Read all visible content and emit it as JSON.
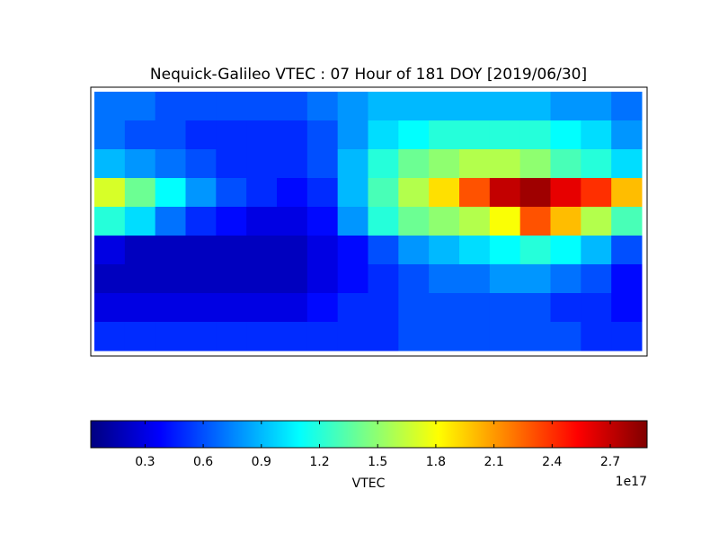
{
  "chart_data": {
    "type": "heatmap",
    "title": "Nequick-Galileo VTEC : 07 Hour of 181 DOY [2019/06/30]",
    "colormap": "jet",
    "xlim": [
      -180,
      180
    ],
    "ylim": [
      -90,
      90
    ],
    "x": [
      -170,
      -150,
      -130,
      -110,
      -90,
      -70,
      -50,
      -30,
      -10,
      10,
      30,
      50,
      70,
      90,
      110,
      130,
      150,
      170
    ],
    "y": [
      80,
      60,
      40,
      20,
      0,
      -20,
      -40,
      -60,
      -80
    ],
    "z": [
      [
        0.7,
        0.7,
        0.6,
        0.6,
        0.6,
        0.6,
        0.6,
        0.7,
        0.8,
        0.9,
        0.9,
        0.9,
        0.9,
        0.9,
        0.9,
        0.8,
        0.8,
        0.7
      ],
      [
        0.7,
        0.6,
        0.6,
        0.5,
        0.5,
        0.5,
        0.5,
        0.6,
        0.8,
        1.0,
        1.1,
        1.2,
        1.2,
        1.2,
        1.2,
        1.1,
        1.0,
        0.8
      ],
      [
        0.9,
        0.8,
        0.7,
        0.6,
        0.5,
        0.5,
        0.5,
        0.6,
        0.9,
        1.2,
        1.4,
        1.5,
        1.6,
        1.6,
        1.5,
        1.3,
        1.2,
        1.0
      ],
      [
        1.7,
        1.4,
        1.1,
        0.8,
        0.6,
        0.5,
        0.4,
        0.5,
        0.9,
        1.3,
        1.6,
        1.9,
        2.3,
        2.7,
        2.8,
        2.6,
        2.4,
        2.0
      ],
      [
        1.2,
        1.0,
        0.7,
        0.5,
        0.4,
        0.3,
        0.3,
        0.4,
        0.8,
        1.2,
        1.4,
        1.5,
        1.6,
        1.8,
        2.3,
        2.0,
        1.6,
        1.3
      ],
      [
        0.3,
        0.2,
        0.2,
        0.2,
        0.2,
        0.2,
        0.2,
        0.3,
        0.4,
        0.6,
        0.8,
        0.9,
        1.0,
        1.1,
        1.2,
        1.1,
        0.9,
        0.6
      ],
      [
        0.2,
        0.2,
        0.2,
        0.2,
        0.2,
        0.2,
        0.2,
        0.3,
        0.4,
        0.5,
        0.6,
        0.7,
        0.7,
        0.8,
        0.8,
        0.7,
        0.6,
        0.4
      ],
      [
        0.3,
        0.3,
        0.3,
        0.3,
        0.3,
        0.3,
        0.3,
        0.4,
        0.5,
        0.5,
        0.6,
        0.6,
        0.6,
        0.6,
        0.6,
        0.5,
        0.5,
        0.4
      ],
      [
        0.5,
        0.5,
        0.5,
        0.5,
        0.5,
        0.5,
        0.5,
        0.5,
        0.5,
        0.5,
        0.6,
        0.6,
        0.6,
        0.6,
        0.6,
        0.6,
        0.5,
        0.5
      ]
    ],
    "clim": [
      0.02,
      2.89
    ],
    "cticks": [
      0.3,
      0.6,
      0.9,
      1.2,
      1.5,
      1.8,
      2.1,
      2.4,
      2.7
    ],
    "colorbar_label": "VTEC",
    "offset_label": "1e17"
  }
}
